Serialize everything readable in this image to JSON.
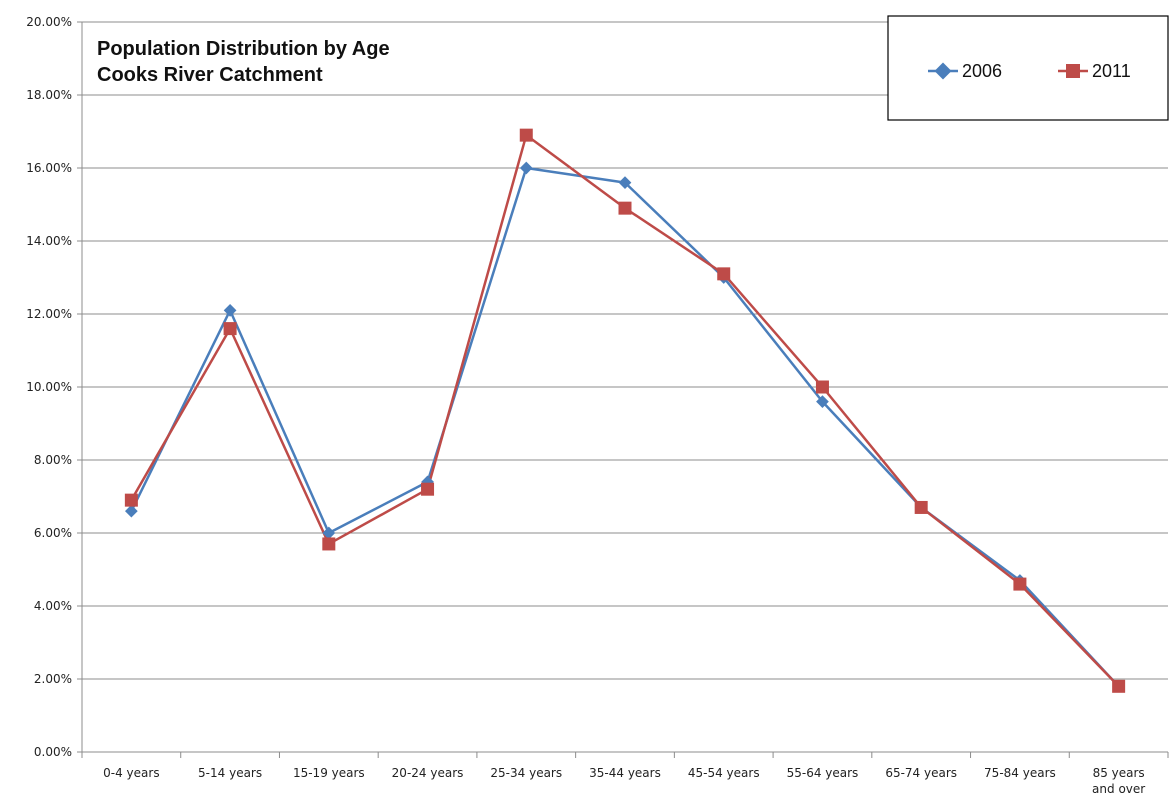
{
  "chart_data": {
    "type": "line",
    "title_lines": [
      "Population Distribution by Age",
      "Cooks River Catchment"
    ],
    "categories": [
      [
        "0-4 years"
      ],
      [
        "5-14 years"
      ],
      [
        "15-19 years"
      ],
      [
        "20-24 years"
      ],
      [
        "25-34 years"
      ],
      [
        "35-44 years"
      ],
      [
        "45-54 years"
      ],
      [
        "55-64 years"
      ],
      [
        "65-74 years"
      ],
      [
        "75-84 years"
      ],
      [
        "85 years",
        "and over"
      ]
    ],
    "y_ticks": [
      "0.00%",
      "2.00%",
      "4.00%",
      "6.00%",
      "8.00%",
      "10.00%",
      "12.00%",
      "14.00%",
      "16.00%",
      "18.00%",
      "20.00%"
    ],
    "ylim": [
      0,
      20
    ],
    "grid": true,
    "legend_position": "top-right",
    "series": [
      {
        "name": "2006",
        "color": "#4a7ebb",
        "marker": "diamond",
        "values": [
          6.6,
          12.1,
          6.0,
          7.4,
          16.0,
          15.6,
          13.0,
          9.6,
          6.7,
          4.7,
          1.8
        ]
      },
      {
        "name": "2011",
        "color": "#be4b48",
        "marker": "square",
        "values": [
          6.9,
          11.6,
          5.7,
          7.2,
          16.9,
          14.9,
          13.1,
          10.0,
          6.7,
          4.6,
          1.8
        ]
      }
    ]
  }
}
